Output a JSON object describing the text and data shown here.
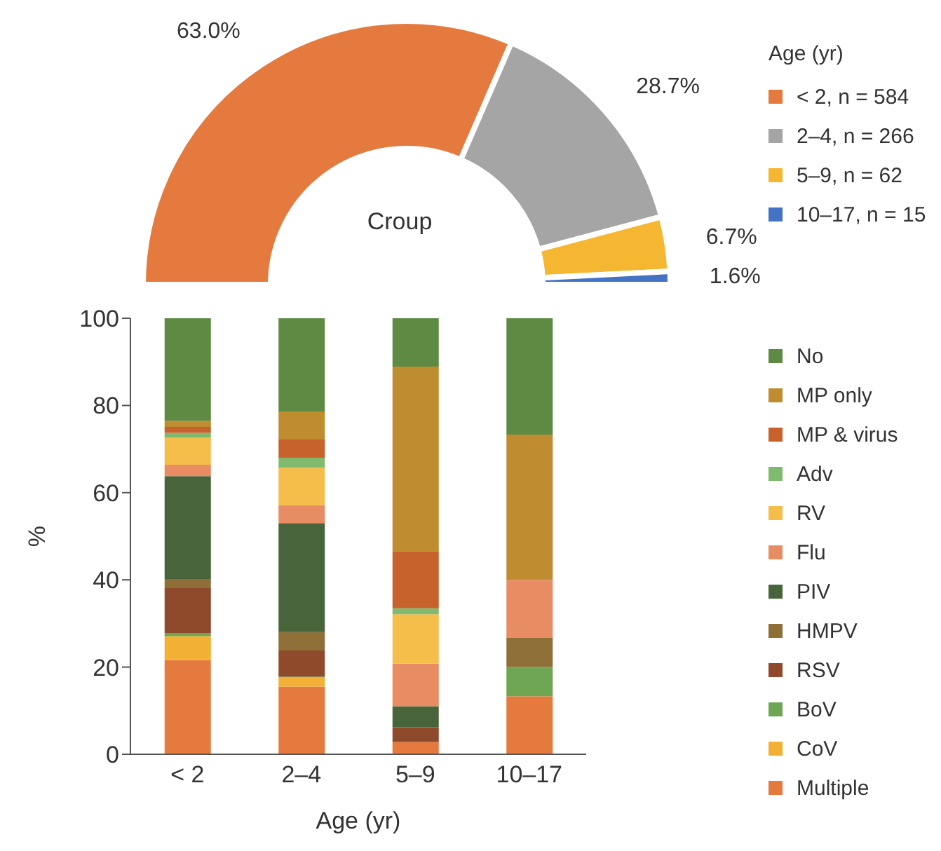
{
  "chart_data": [
    {
      "type": "donut",
      "title": "Croup",
      "legend_title": "Age (yr)",
      "categories": [
        "< 2, n = 584",
        "2–4, n = 266",
        "5–9, n = 62",
        "10–17, n = 15"
      ],
      "values": [
        63.0,
        28.7,
        6.7,
        1.6
      ],
      "value_labels": [
        "63.0%",
        "28.7%",
        "6.7%",
        "1.6%"
      ],
      "colors": [
        "#e57a3f",
        "#a5a5a5",
        "#f5b731",
        "#4472c4"
      ],
      "legend": "right"
    },
    {
      "type": "bar",
      "stacked": true,
      "xlabel": "Age (yr)",
      "ylabel": "%",
      "categories": [
        "< 2",
        "2–4",
        "5–9",
        "10–17"
      ],
      "ylim": [
        0,
        100
      ],
      "yticks": [
        0,
        20,
        40,
        60,
        80,
        100
      ],
      "legend": "right",
      "series": [
        {
          "name": "Multiple",
          "color": "#e57a3f",
          "values": [
            21.6,
            15.5,
            2.8,
            13.3
          ]
        },
        {
          "name": "CoV",
          "color": "#f2b134",
          "values": [
            5.5,
            2.1,
            0,
            0
          ]
        },
        {
          "name": "BoV",
          "color": "#6fa653",
          "values": [
            0.7,
            0.2,
            0,
            6.7
          ]
        },
        {
          "name": "RSV",
          "color": "#8f4a2c",
          "values": [
            10.3,
            6.0,
            3.4,
            0
          ]
        },
        {
          "name": "HMPV",
          "color": "#8d6f37",
          "values": [
            2.1,
            4.2,
            0,
            6.7
          ]
        },
        {
          "name": "PIV",
          "color": "#48643a",
          "values": [
            23.6,
            25.0,
            4.8,
            0
          ]
        },
        {
          "name": "Flu",
          "color": "#e88c64",
          "values": [
            2.6,
            4.1,
            9.8,
            13.3
          ]
        },
        {
          "name": "RV",
          "color": "#f5bd4a",
          "values": [
            6.2,
            8.6,
            11.3,
            0
          ]
        },
        {
          "name": "Adv",
          "color": "#7fba6e",
          "values": [
            1.1,
            2.3,
            1.4,
            0
          ]
        },
        {
          "name": "MP & virus",
          "color": "#c8622c",
          "values": [
            1.4,
            4.2,
            13.1,
            0
          ]
        },
        {
          "name": "MP only",
          "color": "#bf8c30",
          "values": [
            1.4,
            6.4,
            42.3,
            33.3
          ]
        },
        {
          "name": "No",
          "color": "#5f8a44",
          "values": [
            23.5,
            21.4,
            11.1,
            26.7
          ]
        }
      ]
    }
  ]
}
